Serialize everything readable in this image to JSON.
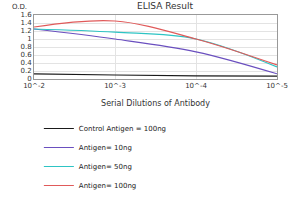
{
  "chart_data": {
    "type": "line",
    "title": "ELISA Result",
    "ylabel": "O.D.",
    "xlabel": "Serial Dilutions of Antibody",
    "log": "x",
    "grid": true,
    "legend": "bottom",
    "x": [
      0.01,
      0.001,
      0.0001,
      1e-05
    ],
    "xlim": [
      0.01,
      1e-05
    ],
    "xticks": [
      {
        "value": 0.01,
        "label": "10^-2"
      },
      {
        "value": 0.001,
        "label": "10^-3"
      },
      {
        "value": 0.0001,
        "label": "10^-4"
      },
      {
        "value": 1e-05,
        "label": "10^-5"
      }
    ],
    "ylim": [
      0,
      1.6
    ],
    "yticks": [
      0,
      0.2,
      0.4,
      0.6,
      0.8,
      1,
      1.2,
      1.4,
      1.6
    ],
    "series": [
      {
        "name": "Control Antigen = 100ng",
        "color": "#1a1a1a",
        "values": [
          0.13,
          0.1,
          0.08,
          0.07
        ]
      },
      {
        "name": "Antigen= 10ng",
        "color": "#6a4fbf",
        "values": [
          1.25,
          1.0,
          0.68,
          0.13
        ]
      },
      {
        "name": "Antigen= 50ng",
        "color": "#2ec4c4",
        "values": [
          1.25,
          1.17,
          1.0,
          0.3
        ]
      },
      {
        "name": "Antigen= 100ng",
        "color": "#e05a5a",
        "values": [
          1.3,
          1.45,
          1.0,
          0.35
        ]
      }
    ]
  }
}
